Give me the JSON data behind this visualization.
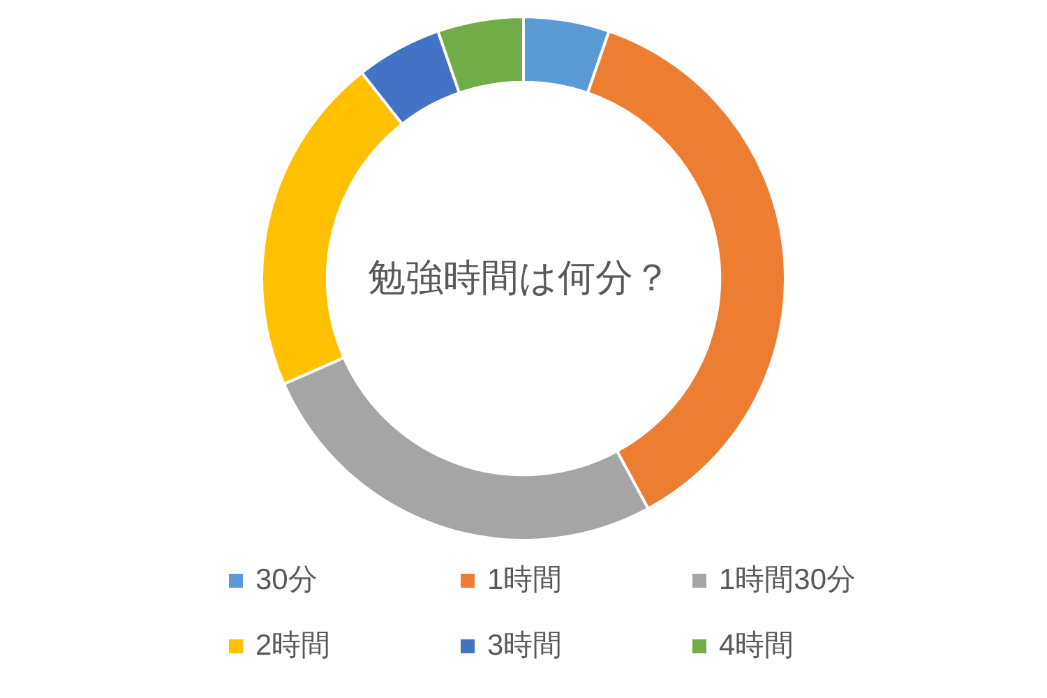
{
  "chart_data": {
    "type": "donut",
    "title": "勉強時間は何分？",
    "categories": [
      "30分",
      "1時間",
      "1時間30分",
      "2時間",
      "3時間",
      "4時間"
    ],
    "values": [
      5.3,
      36.8,
      26.3,
      21.0,
      5.3,
      5.3
    ],
    "colors": [
      "#5b9bd5",
      "#ed7d31",
      "#a5a5a5",
      "#ffc000",
      "#4472c4",
      "#70ad47"
    ],
    "legend": "bottom"
  }
}
